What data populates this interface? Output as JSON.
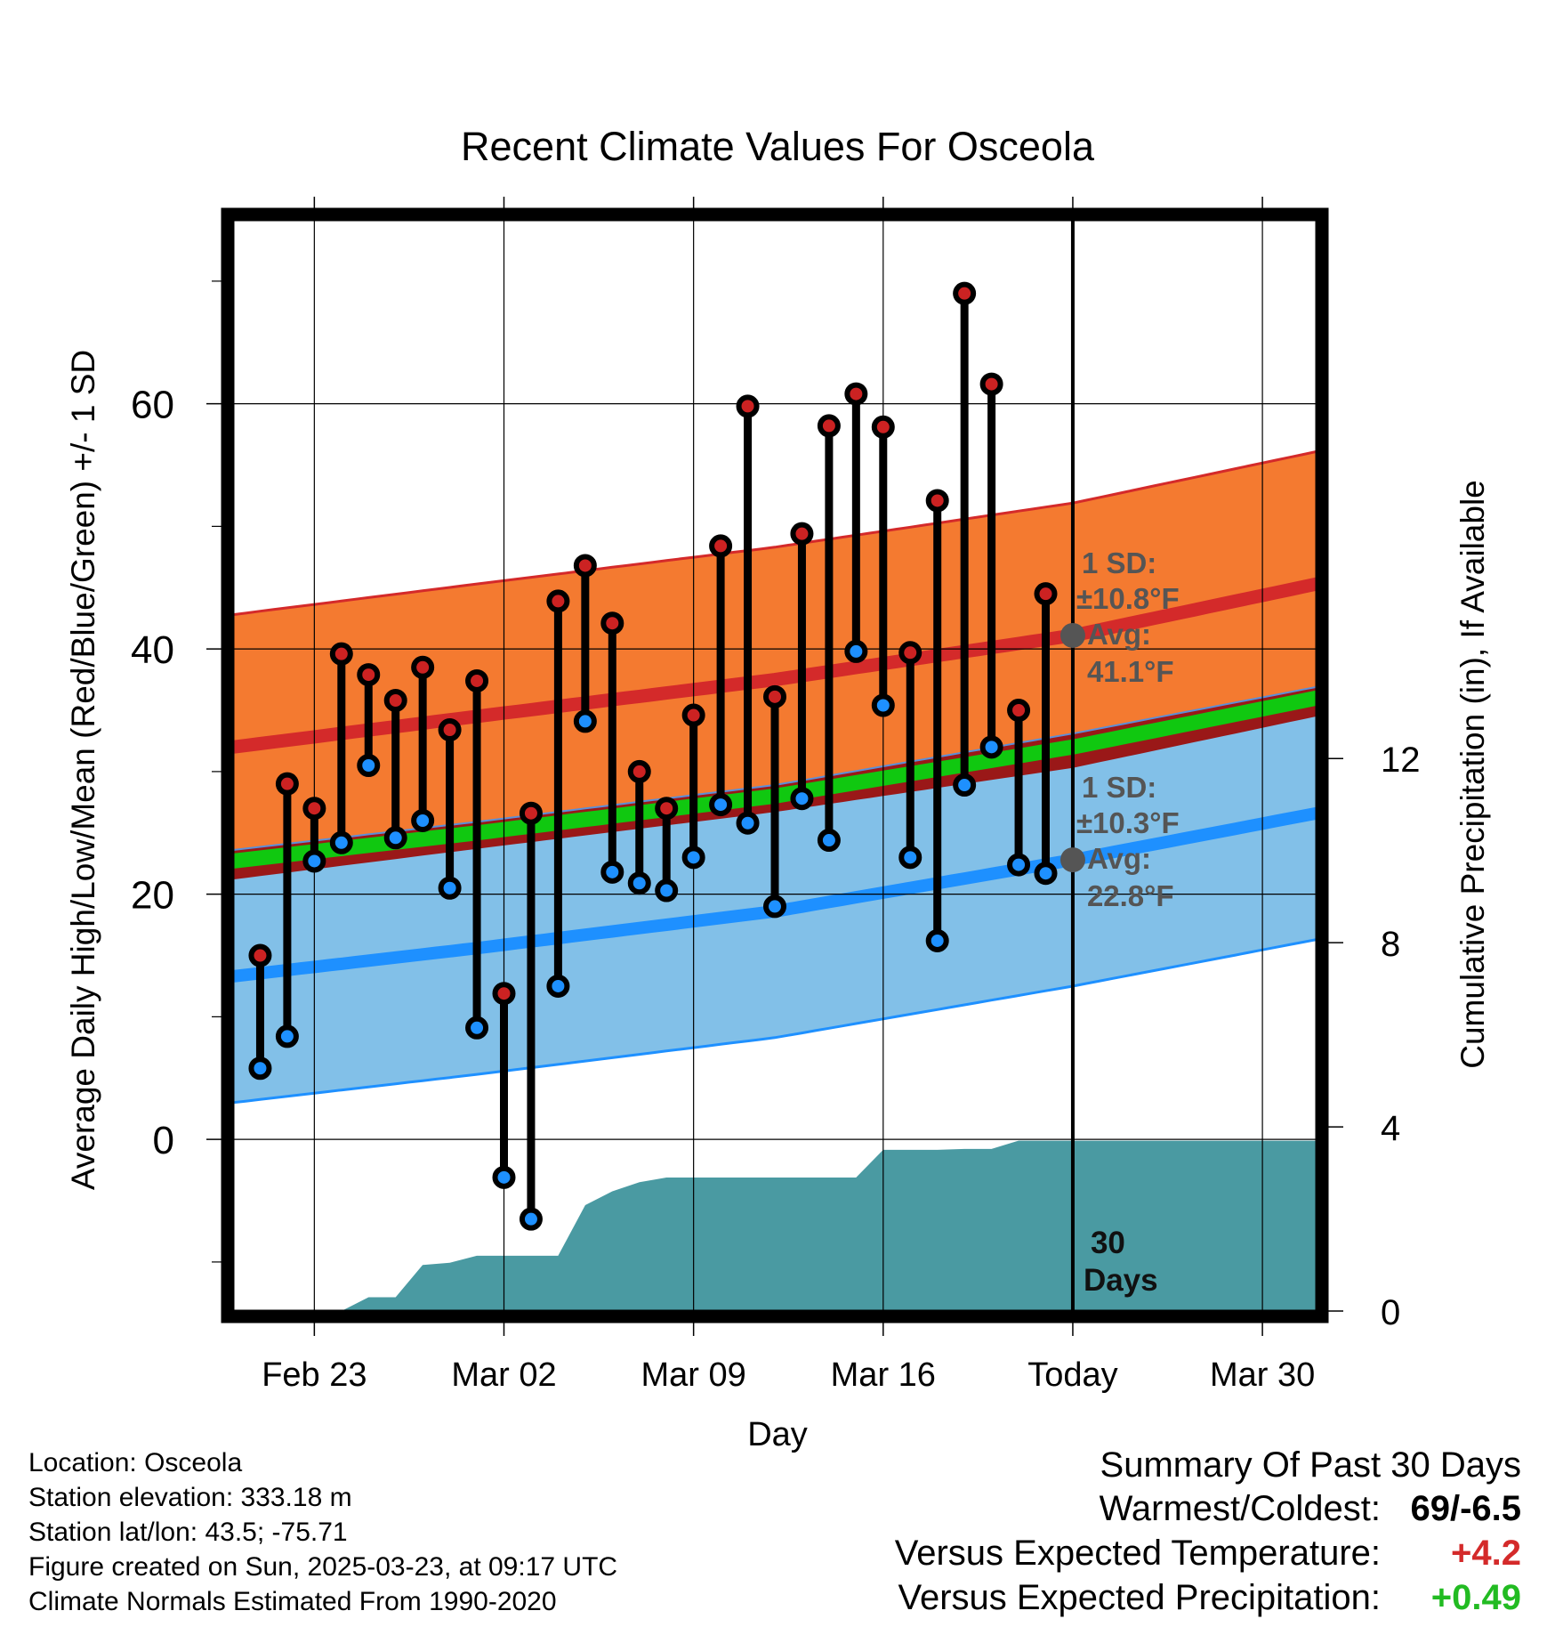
{
  "chart_data": {
    "type": "line",
    "title": "Recent Climate Values For Osceola",
    "xlabel": "Day",
    "ylabel": "Average Daily High/Low/Mean (Red/Blue/Green) +/- 1 SD",
    "y2label": "Cumulative Precipitation (in), If Available",
    "ylim": [
      -14,
      75
    ],
    "y2lim": [
      0,
      23.7
    ],
    "yticks": [
      "0",
      "20",
      "40",
      "60"
    ],
    "y2ticks": [
      "0",
      "4",
      "8",
      "12"
    ],
    "xticks": [
      "Feb 23",
      "Mar 02",
      "Mar 09",
      "Mar 16",
      "Today",
      "Mar 30"
    ],
    "xlim": [
      "2025-02-20",
      "2025-04-01"
    ],
    "today": "2025-03-23",
    "period_label": [
      "30",
      "Days"
    ],
    "grid": true,
    "normals": {
      "high_mean": [
        [
          "2025-02-20",
          32
        ],
        [
          "2025-03-01",
          34.5
        ],
        [
          "2025-03-12",
          37.5
        ],
        [
          "2025-03-23",
          41.1
        ],
        [
          "2025-04-01",
          45.3
        ]
      ],
      "high_sd": 10.8,
      "low_mean": [
        [
          "2025-02-20",
          13.3
        ],
        [
          "2025-03-01",
          15.6
        ],
        [
          "2025-03-12",
          18.6
        ],
        [
          "2025-03-23",
          22.8
        ],
        [
          "2025-04-01",
          26.6
        ]
      ],
      "low_sd": 10.3,
      "mean": [
        [
          "2025-02-20",
          22.7
        ],
        [
          "2025-03-01",
          25.0
        ],
        [
          "2025-03-12",
          28.0
        ],
        [
          "2025-03-23",
          32.0
        ],
        [
          "2025-04-01",
          36.0
        ]
      ]
    },
    "series": [
      {
        "name": "High",
        "color": "#cc2222",
        "x": [
          "2025-02-21",
          "2025-02-22",
          "2025-02-23",
          "2025-02-24",
          "2025-02-25",
          "2025-02-26",
          "2025-02-27",
          "2025-02-28",
          "2025-03-01",
          "2025-03-02",
          "2025-03-03",
          "2025-03-04",
          "2025-03-05",
          "2025-03-06",
          "2025-03-07",
          "2025-03-08",
          "2025-03-09",
          "2025-03-10",
          "2025-03-11",
          "2025-03-12",
          "2025-03-13",
          "2025-03-14",
          "2025-03-15",
          "2025-03-16",
          "2025-03-17",
          "2025-03-18",
          "2025-03-19",
          "2025-03-20",
          "2025-03-21",
          "2025-03-22"
        ],
        "values": [
          15,
          29,
          27,
          39.6,
          37.9,
          35.8,
          38.5,
          33.4,
          37.4,
          11.9,
          26.6,
          43.9,
          46.8,
          42.1,
          30,
          27,
          34.6,
          48.4,
          59.8,
          36.1,
          49.4,
          58.2,
          60.8,
          58.1,
          39.7,
          52.1,
          69,
          61.6,
          35,
          44.5
        ]
      },
      {
        "name": "Low",
        "color": "#1e90ff",
        "x": [
          "2025-02-21",
          "2025-02-22",
          "2025-02-23",
          "2025-02-24",
          "2025-02-25",
          "2025-02-26",
          "2025-02-27",
          "2025-02-28",
          "2025-03-01",
          "2025-03-02",
          "2025-03-03",
          "2025-03-04",
          "2025-03-05",
          "2025-03-06",
          "2025-03-07",
          "2025-03-08",
          "2025-03-09",
          "2025-03-10",
          "2025-03-11",
          "2025-03-12",
          "2025-03-13",
          "2025-03-14",
          "2025-03-15",
          "2025-03-16",
          "2025-03-17",
          "2025-03-18",
          "2025-03-19",
          "2025-03-20",
          "2025-03-21",
          "2025-03-22"
        ],
        "values": [
          5.8,
          8.4,
          22.7,
          24.2,
          30.5,
          24.6,
          26,
          20.5,
          9.1,
          -3.1,
          -6.5,
          12.5,
          34.1,
          21.8,
          20.9,
          20.3,
          23,
          27.3,
          25.8,
          19,
          27.8,
          24.4,
          39.8,
          35.4,
          23,
          16.2,
          28.9,
          32,
          22.4,
          21.7
        ]
      },
      {
        "name": "Cumulative Precipitation",
        "color": "#4a9aa2",
        "x": [
          "2025-02-21",
          "2025-02-22",
          "2025-02-23",
          "2025-02-24",
          "2025-02-25",
          "2025-02-26",
          "2025-02-27",
          "2025-02-28",
          "2025-03-01",
          "2025-03-02",
          "2025-03-03",
          "2025-03-04",
          "2025-03-05",
          "2025-03-06",
          "2025-03-07",
          "2025-03-08",
          "2025-03-09",
          "2025-03-10",
          "2025-03-11",
          "2025-03-12",
          "2025-03-13",
          "2025-03-14",
          "2025-03-15",
          "2025-03-16",
          "2025-03-17",
          "2025-03-18",
          "2025-03-19",
          "2025-03-20",
          "2025-03-21",
          "2025-03-22"
        ],
        "values": [
          0,
          0,
          0,
          0,
          0.3,
          0.3,
          1.0,
          1.05,
          1.2,
          1.2,
          1.2,
          1.2,
          2.3,
          2.6,
          2.8,
          2.9,
          2.9,
          2.9,
          2.9,
          2.9,
          2.9,
          2.9,
          2.9,
          3.5,
          3.5,
          3.5,
          3.52,
          3.52,
          3.7,
          3.7
        ]
      }
    ],
    "annotations": [
      {
        "series": "High",
        "lines": [
          "1 SD:",
          "±10.8°F",
          "Avg:",
          "41.1°F"
        ]
      },
      {
        "series": "Low",
        "lines": [
          "1 SD:",
          "±10.3°F",
          "Avg:",
          "22.8°F"
        ]
      }
    ]
  },
  "info": {
    "location": "Location: Osceola",
    "elevation": "Station elevation: 333.18 m",
    "latlon": "Station lat/lon: 43.5; -75.71",
    "created": "Figure created on Sun, 2025-03-23, at 09:17 UTC",
    "normals": "Climate Normals Estimated From 1990-2020"
  },
  "summary": {
    "title": "Summary Of Past 30 Days",
    "warmest_label": "Warmest/Coldest:",
    "warmest_value": "69/-6.5",
    "temp_label": "Versus Expected Temperature:",
    "temp_value": "+4.2",
    "temp_color": "#d42a2a",
    "precip_label": "Versus Expected Precipitation:",
    "precip_value": "+0.49",
    "precip_color": "#22bb22"
  }
}
